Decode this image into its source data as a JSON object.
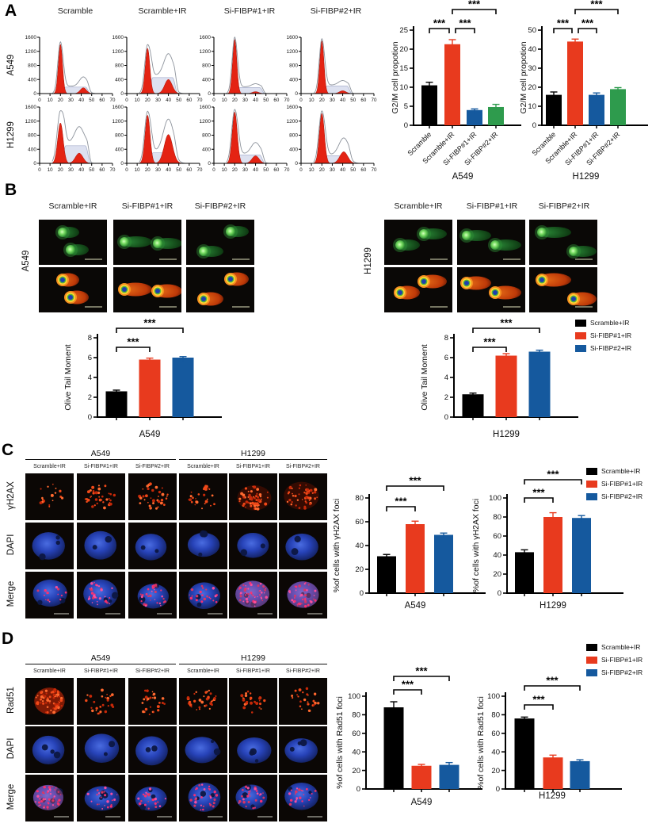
{
  "colors": {
    "black": "#000000",
    "red": "#e83a1e",
    "blue": "#15599e",
    "green": "#2e9b4d",
    "hist_red": "#e42313",
    "hist_s_fill": "#dde1f0",
    "hist_s_stroke": "#a6aecb",
    "hist_env": "#8d939c"
  },
  "legend": [
    {
      "label": "Scramble+IR",
      "color": "black"
    },
    {
      "label": "Si-FIBP#1+IR",
      "color": "red"
    },
    {
      "label": "Si-FIBP#2+IR",
      "color": "blue"
    }
  ],
  "panelA": {
    "label": "A",
    "col_titles": [
      "Scramble",
      "Scramble+IR",
      "Si-FIBP#1+IR",
      "Si-FIBP#2+IR"
    ],
    "row_labels": [
      "A549",
      "H1299"
    ],
    "hist_axis": {
      "ymax": 1600,
      "yticks": [
        0,
        400,
        800,
        1200,
        1600
      ],
      "xmax": 70,
      "xticks": [
        0,
        10,
        20,
        30,
        40,
        50,
        60,
        70
      ]
    },
    "histograms": [
      {
        "cell": "A549",
        "condition": "Scramble",
        "g1": 1400,
        "s": 185,
        "g2": 165,
        "g2x": 42,
        "g1sig": 2.0,
        "g2sig": 3.0,
        "envG1": 1.05,
        "envG2": 1.6
      },
      {
        "cell": "A549",
        "condition": "Scramble+IR",
        "g1": 1290,
        "s": 455,
        "g2": 400,
        "g2x": 40,
        "g1sig": 2.2,
        "g2sig": 3.6,
        "envG1": 1.08,
        "envG2": 1.55
      },
      {
        "cell": "A549",
        "condition": "Si-FIBP#1+IR",
        "g1": 1540,
        "s": 170,
        "g2": 55,
        "g2x": 40,
        "g1sig": 2.0,
        "g2sig": 3.0,
        "envG1": 1.04,
        "envG2": 1.6
      },
      {
        "cell": "A549",
        "condition": "Si-FIBP#2+IR",
        "g1": 1500,
        "s": 215,
        "g2": 80,
        "g2x": 40,
        "g1sig": 2.0,
        "g2sig": 3.2,
        "envG1": 1.04,
        "envG2": 1.6
      },
      {
        "cell": "H1299",
        "condition": "Scramble",
        "g1": 1150,
        "s": 500,
        "g2": 290,
        "g2x": 38,
        "g1sig": 2.6,
        "g2sig": 3.6,
        "envG1": 1.3,
        "envG2": 1.65
      },
      {
        "cell": "H1299",
        "condition": "Scramble+IR",
        "g1": 1370,
        "s": 300,
        "g2": 820,
        "g2x": 40,
        "g1sig": 2.4,
        "g2sig": 4.0,
        "envG1": 1.08,
        "envG2": 1.12
      },
      {
        "cell": "H1299",
        "condition": "Si-FIBP#1+IR",
        "g1": 1460,
        "s": 240,
        "g2": 215,
        "g2x": 40,
        "g1sig": 2.4,
        "g2sig": 3.4,
        "envG1": 1.05,
        "envG2": 1.5
      },
      {
        "cell": "H1299",
        "condition": "Si-FIBP#2+IR",
        "g1": 1420,
        "s": 215,
        "g2": 330,
        "g2x": 41,
        "g1sig": 2.4,
        "g2sig": 3.8,
        "envG1": 1.05,
        "envG2": 1.45
      }
    ]
  },
  "panelB": {
    "label": "B",
    "groups": [
      {
        "cell": "A549",
        "col_titles": [
          "Scramble+IR",
          "Si-FIBP#1+IR",
          "Si-FIBP#2+IR"
        ]
      },
      {
        "cell": "H1299",
        "col_titles": [
          "Scramble+IR",
          "Si-FIBP#1+IR",
          "Si-FIBP#2+IR"
        ]
      }
    ]
  },
  "panelC": {
    "label": "C",
    "group_headers": [
      "A549",
      "H1299"
    ],
    "col_titles": [
      "Scramble+IR",
      "Si-FIBP#1+IR",
      "Si-FIBP#2+IR",
      "Scramble+IR",
      "Si-FIBP#1+IR",
      "Si-FIBP#2+IR"
    ],
    "row_labels": [
      "γH2AX",
      "DAPI",
      "Merge"
    ],
    "if_levels": {
      "foci": [
        1,
        3,
        3,
        2,
        5,
        4
      ],
      "merge": [
        1,
        3,
        3,
        2,
        5,
        4
      ]
    }
  },
  "panelD": {
    "label": "D",
    "group_headers": [
      "A549",
      "H1299"
    ],
    "col_titles": [
      "Scramble+IR",
      "Si-FIBP#1+IR",
      "Si-FIBP#2+IR",
      "Scramble+IR",
      "Si-FIBP#1+IR",
      "Si-FIBP#2+IR"
    ],
    "row_labels": [
      "Rad51",
      "DAPI",
      "Merge"
    ],
    "if_levels": {
      "foci": [
        6,
        2,
        2,
        3,
        2,
        2
      ],
      "merge": [
        5,
        2,
        2,
        3,
        3,
        2
      ]
    }
  },
  "chart_data": [
    {
      "id": "g2m-a549",
      "type": "bar",
      "panel": "A",
      "ylabel": "G2/M cell propotion",
      "xlabel": "A549",
      "categories": [
        "Scramble",
        "Scramble+IR",
        "Si-FIBP#1+IR",
        "Si-FIBP#2+IR"
      ],
      "values": [
        10.5,
        21.3,
        4.0,
        4.8
      ],
      "errors": [
        0.8,
        1.2,
        0.3,
        0.7
      ],
      "bar_colors": [
        "black",
        "red",
        "blue",
        "green"
      ],
      "ymax": 25,
      "yticks": [
        0,
        5,
        10,
        15,
        20,
        25
      ],
      "significance": [
        {
          "from": 0,
          "to": 1,
          "label": "***"
        },
        {
          "from": 1,
          "to": 2,
          "label": "***"
        },
        {
          "from": 1,
          "to": 3,
          "label": "***"
        }
      ]
    },
    {
      "id": "g2m-h1299",
      "type": "bar",
      "panel": "A",
      "ylabel": "G2/M cell propotion",
      "xlabel": "H1299",
      "categories": [
        "Scramble",
        "Scramble+IR",
        "Si-FIBP#1+IR",
        "Si-FIBP#2+IR"
      ],
      "values": [
        16,
        44,
        16,
        19
      ],
      "errors": [
        1.5,
        1.3,
        1.0,
        0.8
      ],
      "bar_colors": [
        "black",
        "red",
        "blue",
        "green"
      ],
      "ymax": 50,
      "yticks": [
        0,
        10,
        20,
        30,
        40,
        50
      ],
      "significance": [
        {
          "from": 0,
          "to": 1,
          "label": "***"
        },
        {
          "from": 1,
          "to": 2,
          "label": "***"
        },
        {
          "from": 1,
          "to": 3,
          "label": "***"
        }
      ]
    },
    {
      "id": "otm-a549",
      "type": "bar",
      "panel": "B",
      "ylabel": "Olive Tail Moment",
      "xlabel": "A549",
      "categories": [
        "Scramble+IR",
        "Si-FIBP#1+IR",
        "Si-FIBP#2+IR"
      ],
      "values": [
        2.6,
        5.8,
        6.0
      ],
      "errors": [
        0.12,
        0.15,
        0.1
      ],
      "bar_colors": [
        "black",
        "red",
        "blue"
      ],
      "ymax": 8,
      "yticks": [
        0,
        2,
        4,
        6,
        8
      ],
      "significance": [
        {
          "from": 0,
          "to": 1,
          "label": "***"
        },
        {
          "from": 0,
          "to": 2,
          "label": "***"
        }
      ]
    },
    {
      "id": "otm-h1299",
      "type": "bar",
      "panel": "B",
      "ylabel": "Olive Tail Moment",
      "xlabel": "H1299",
      "categories": [
        "Scramble+IR",
        "Si-FIBP#1+IR",
        "Si-FIBP#2+IR"
      ],
      "values": [
        2.3,
        6.2,
        6.6
      ],
      "errors": [
        0.12,
        0.2,
        0.15
      ],
      "bar_colors": [
        "black",
        "red",
        "blue"
      ],
      "ymax": 8,
      "yticks": [
        0,
        2,
        4,
        6,
        8
      ],
      "significance": [
        {
          "from": 0,
          "to": 1,
          "label": "***"
        },
        {
          "from": 0,
          "to": 2,
          "label": "***"
        }
      ]
    },
    {
      "id": "h2ax-a549",
      "type": "bar",
      "panel": "C",
      "ylabel": "%of cells with  γH2AX foci",
      "xlabel": "A549",
      "categories": [
        "Scramble+IR",
        "Si-FIBP#1+IR",
        "Si-FIBP#2+IR"
      ],
      "values": [
        31,
        58,
        49
      ],
      "errors": [
        1.5,
        2.5,
        1.5
      ],
      "bar_colors": [
        "black",
        "red",
        "blue"
      ],
      "ymax": 80,
      "yticks": [
        0,
        20,
        40,
        60,
        80
      ],
      "significance": [
        {
          "from": 0,
          "to": 1,
          "label": "***"
        },
        {
          "from": 0,
          "to": 2,
          "label": "***"
        }
      ]
    },
    {
      "id": "h2ax-h1299",
      "type": "bar",
      "panel": "C",
      "ylabel": "%of cells with  γH2AX foci",
      "xlabel": "H1299",
      "categories": [
        "Scramble+IR",
        "Si-FIBP#1+IR",
        "Si-FIBP#2+IR"
      ],
      "values": [
        43,
        80,
        79
      ],
      "errors": [
        2.5,
        4.5,
        2.5
      ],
      "bar_colors": [
        "black",
        "red",
        "blue"
      ],
      "ymax": 100,
      "yticks": [
        0,
        20,
        40,
        60,
        80,
        100
      ],
      "significance": [
        {
          "from": 0,
          "to": 1,
          "label": "***"
        },
        {
          "from": 0,
          "to": 2,
          "label": "***"
        }
      ]
    },
    {
      "id": "rad51-a549",
      "type": "bar",
      "panel": "D",
      "ylabel": "%of cells with Rad51 foci",
      "xlabel": "A549",
      "categories": [
        "Scramble+IR",
        "Si-FIBP#1+IR",
        "Si-FIBP#2+IR"
      ],
      "values": [
        88,
        25,
        26
      ],
      "errors": [
        6,
        1.5,
        2.5
      ],
      "bar_colors": [
        "black",
        "red",
        "blue"
      ],
      "ymax": 100,
      "yticks": [
        0,
        20,
        40,
        60,
        80,
        100
      ],
      "significance": [
        {
          "from": 0,
          "to": 1,
          "label": "***"
        },
        {
          "from": 0,
          "to": 2,
          "label": "***"
        }
      ]
    },
    {
      "id": "rad51-h1299",
      "type": "bar",
      "panel": "D",
      "ylabel": "%of cells with Rad51 foci",
      "xlabel": "H1299",
      "categories": [
        "Scramble+IR",
        "Si-FIBP#1+IR",
        "Si-FIBP#2+IR"
      ],
      "values": [
        76,
        34,
        30
      ],
      "errors": [
        1.5,
        2.5,
        1.5
      ],
      "bar_colors": [
        "black",
        "red",
        "blue"
      ],
      "ymax": 100,
      "yticks": [
        0,
        20,
        40,
        60,
        80,
        100
      ],
      "significance": [
        {
          "from": 0,
          "to": 1,
          "label": "***"
        },
        {
          "from": 0,
          "to": 2,
          "label": "***"
        }
      ]
    }
  ]
}
